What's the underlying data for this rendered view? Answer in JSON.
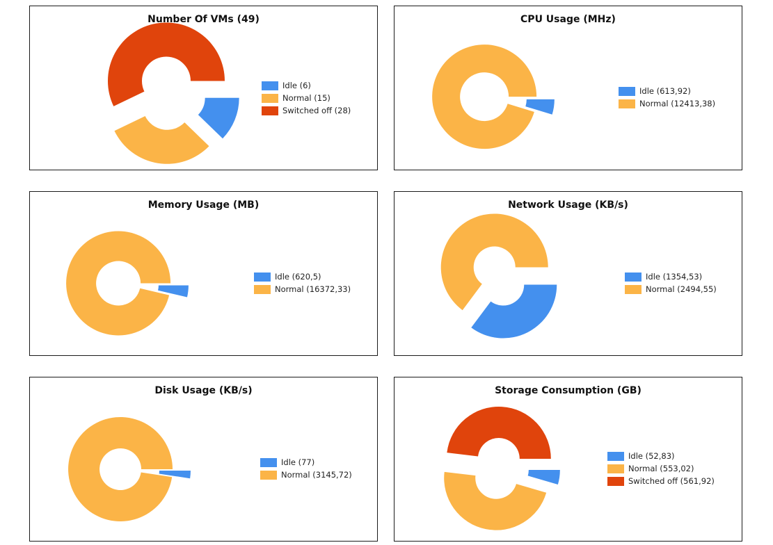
{
  "colors": {
    "idle": "#4490EE",
    "normal": "#FBB447",
    "switched_off": "#E0440C"
  },
  "chart_data": [
    {
      "type": "pie",
      "title": "Number Of VMs (49)",
      "slices": [
        {
          "key": "idle",
          "label": "Idle (6)",
          "value": 6
        },
        {
          "key": "normal",
          "label": "Normal (15)",
          "value": 15
        },
        {
          "key": "switched_off",
          "label": "Switched off (28)",
          "value": 28
        }
      ],
      "legend_position": "right"
    },
    {
      "type": "pie",
      "title": "CPU Usage (MHz)",
      "slices": [
        {
          "key": "idle",
          "label": "Idle (613,92)",
          "value": 613.92
        },
        {
          "key": "normal",
          "label": "Normal (12413,38)",
          "value": 12413.38
        }
      ],
      "legend_position": "right"
    },
    {
      "type": "pie",
      "title": "Memory Usage (MB)",
      "slices": [
        {
          "key": "idle",
          "label": "Idle (620,5)",
          "value": 620.5
        },
        {
          "key": "normal",
          "label": "Normal (16372,33)",
          "value": 16372.33
        }
      ],
      "legend_position": "right"
    },
    {
      "type": "pie",
      "title": "Network Usage (KB/s)",
      "slices": [
        {
          "key": "idle",
          "label": "Idle (1354,53)",
          "value": 1354.53
        },
        {
          "key": "normal",
          "label": "Normal (2494,55)",
          "value": 2494.55
        }
      ],
      "legend_position": "right"
    },
    {
      "type": "pie",
      "title": "Disk Usage (KB/s)",
      "slices": [
        {
          "key": "idle",
          "label": "Idle (77)",
          "value": 77
        },
        {
          "key": "normal",
          "label": "Normal (3145,72)",
          "value": 3145.72
        }
      ],
      "legend_position": "right"
    },
    {
      "type": "pie",
      "title": "Storage Consumption (GB)",
      "slices": [
        {
          "key": "idle",
          "label": "Idle (52,83)",
          "value": 52.83
        },
        {
          "key": "normal",
          "label": "Normal (553,02)",
          "value": 553.02
        },
        {
          "key": "switched_off",
          "label": "Switched off (561,92)",
          "value": 561.92
        }
      ],
      "legend_position": "right"
    }
  ]
}
